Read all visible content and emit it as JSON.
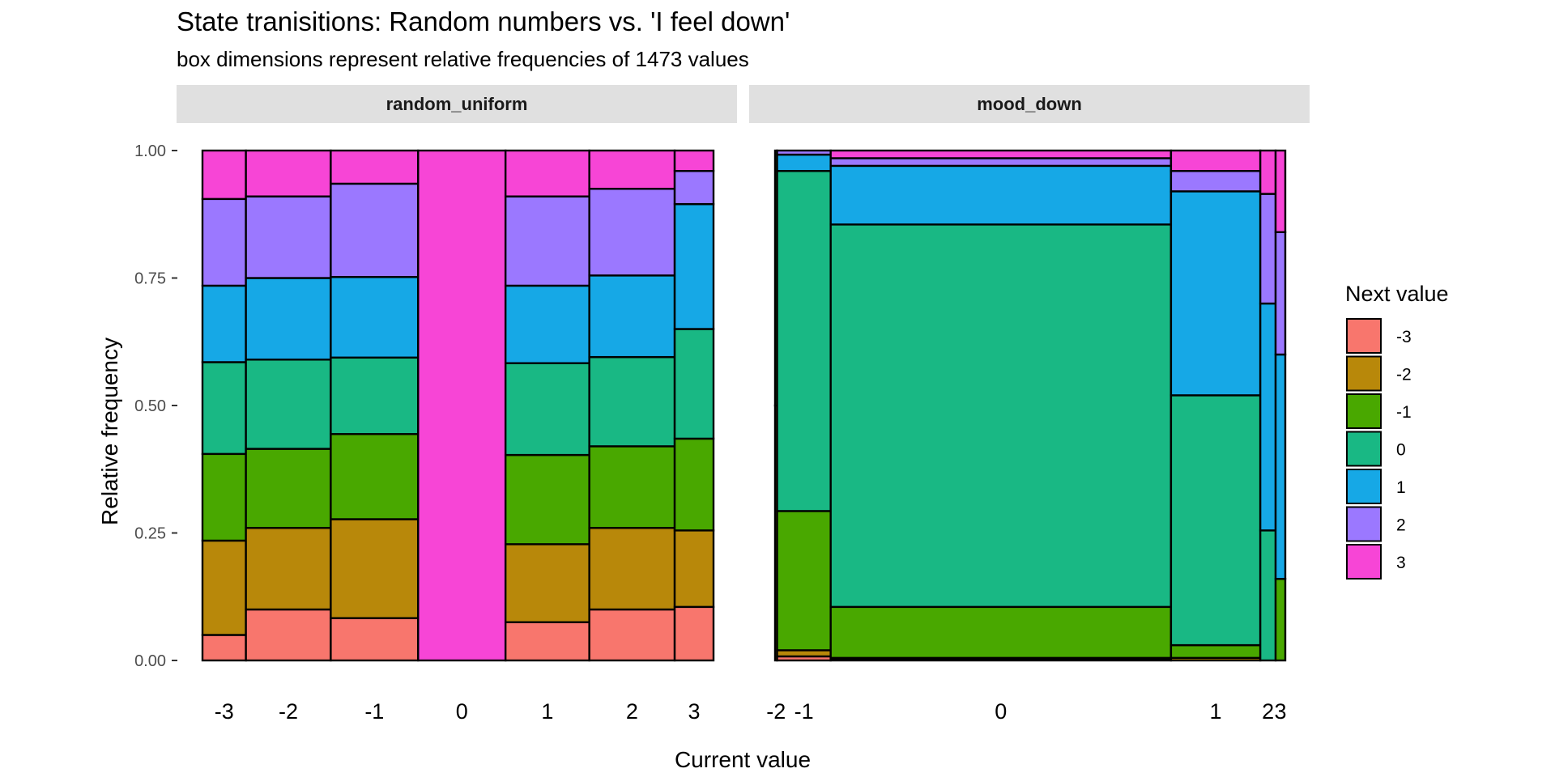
{
  "chart_data": {
    "type": "mosaic",
    "title": "State tranisitions: Random numbers vs. 'I feel down'",
    "subtitle": "box dimensions represent relative frequencies of 1473 values",
    "xlabel": "Current value",
    "ylabel": "Relative frequency",
    "ylim": [
      0,
      1
    ],
    "y_ticks": [
      "0.00",
      "0.25",
      "0.50",
      "0.75",
      "1.00"
    ],
    "y_tick_values": [
      0,
      0.25,
      0.5,
      0.75,
      1
    ],
    "legend": {
      "title": "Next value",
      "position": "right",
      "entries": [
        {
          "label": "-3",
          "color": "#F8766D"
        },
        {
          "label": "-2",
          "color": "#B8880A"
        },
        {
          "label": "-1",
          "color": "#49A800"
        },
        {
          "label": "0",
          "color": "#19B884"
        },
        {
          "label": "1",
          "color": "#16A8E6"
        },
        {
          "label": "2",
          "color": "#9B78FF"
        },
        {
          "label": "3",
          "color": "#F745D6"
        }
      ]
    },
    "panels": [
      {
        "name": "random_uniform",
        "columns": [
          {
            "label": "-3",
            "width": 0.085,
            "values": [
              0.05,
              0.185,
              0.17,
              0.18,
              0.15,
              0.17,
              0.095
            ]
          },
          {
            "label": "-2",
            "width": 0.166,
            "values": [
              0.1,
              0.16,
              0.155,
              0.175,
              0.16,
              0.16,
              0.09
            ]
          },
          {
            "label": "-1",
            "width": 0.171,
            "values": [
              0.083,
              0.194,
              0.167,
              0.15,
              0.158,
              0.183,
              0.065
            ]
          },
          {
            "label": "0",
            "width": 0.171,
            "values": [
              0,
              0,
              0,
              0,
              0,
              0,
              1.0
            ]
          },
          {
            "label": "1",
            "width": 0.164,
            "values": [
              0.075,
              0.153,
              0.175,
              0.18,
              0.152,
              0.175,
              0.09
            ]
          },
          {
            "label": "2",
            "width": 0.167,
            "values": [
              0.1,
              0.16,
              0.16,
              0.175,
              0.16,
              0.17,
              0.075
            ]
          },
          {
            "label": "3",
            "width": 0.076,
            "values": [
              0.105,
              0.15,
              0.18,
              0.215,
              0.245,
              0.065,
              0.04
            ]
          }
        ]
      },
      {
        "name": "mood_down",
        "columns": [
          {
            "label": "-2",
            "width": 0.004,
            "values": [
              0,
              0.5,
              0.5,
              0,
              0,
              0,
              0
            ]
          },
          {
            "label": "-1",
            "width": 0.105,
            "values": [
              0.008,
              0.012,
              0.273,
              0.667,
              0.032,
              0.008,
              0
            ]
          },
          {
            "label": "0",
            "width": 0.667,
            "values": [
              0.002,
              0.003,
              0.1,
              0.75,
              0.115,
              0.015,
              0.015
            ]
          },
          {
            "label": "1",
            "width": 0.175,
            "values": [
              0,
              0.005,
              0.025,
              0.49,
              0.4,
              0.04,
              0.04
            ]
          },
          {
            "label": "2",
            "width": 0.03,
            "values": [
              0,
              0,
              0,
              0.255,
              0.445,
              0.215,
              0.085
            ]
          },
          {
            "label": "3",
            "width": 0.019,
            "values": [
              0,
              0,
              0.16,
              0,
              0.44,
              0.24,
              0.16
            ]
          }
        ]
      }
    ]
  }
}
